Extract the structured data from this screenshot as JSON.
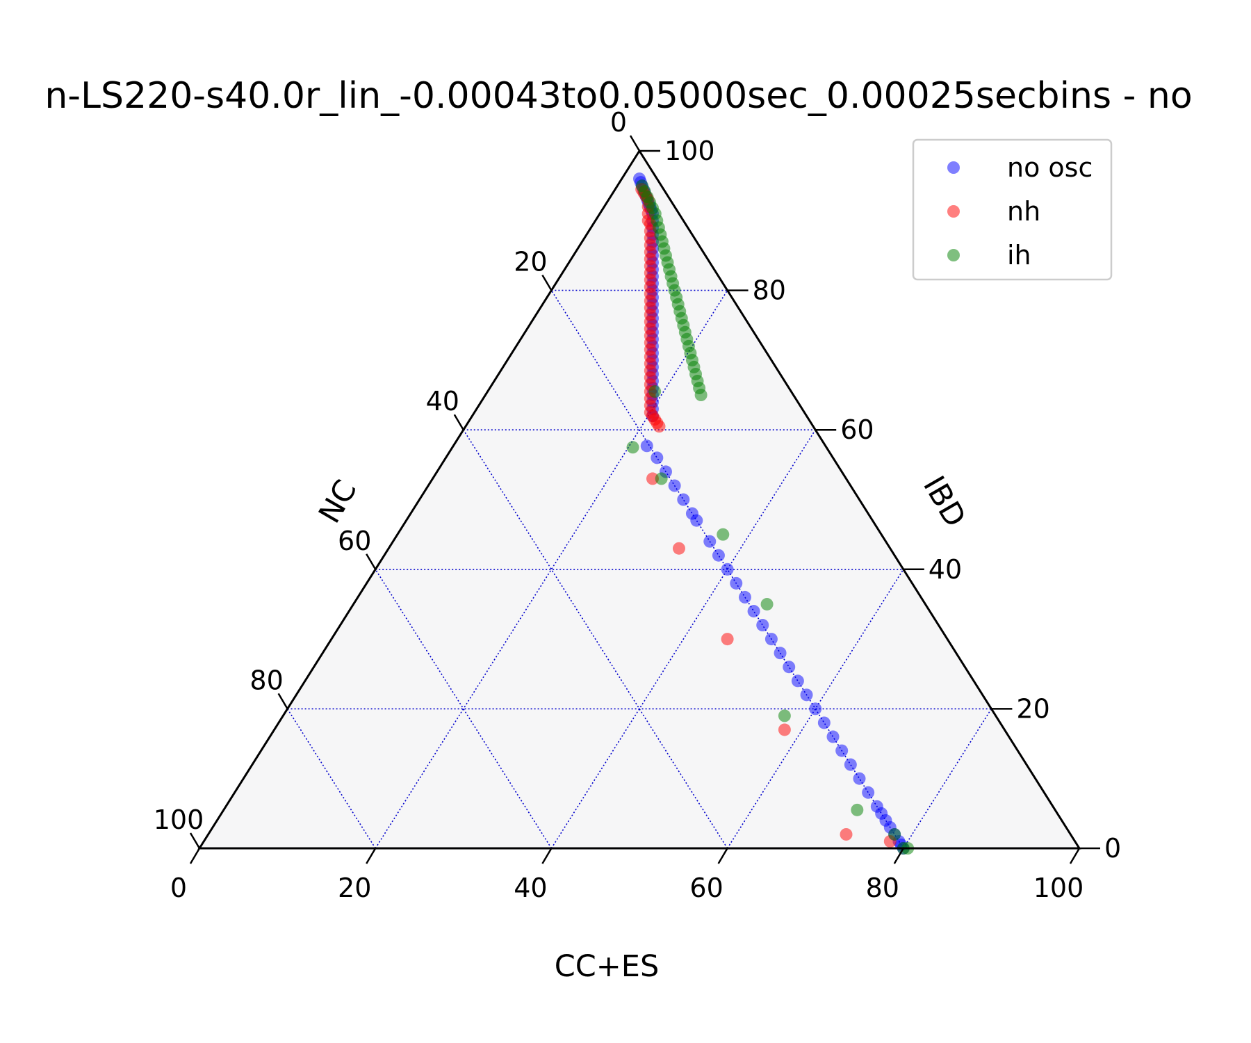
{
  "chart_data": {
    "type": "scatter",
    "subtype": "ternary",
    "title": "n-LS220-s40.0r_lin_-0.00043to0.05000sec_0.00025secbins - no",
    "axes": {
      "bottom": {
        "label": "CC+ES",
        "ticks": [
          "0",
          "20",
          "40",
          "60",
          "80",
          "100"
        ],
        "range": [
          0,
          100
        ]
      },
      "right": {
        "label": "IBD",
        "ticks": [
          "0",
          "20",
          "40",
          "60",
          "80",
          "100"
        ],
        "range": [
          0,
          100
        ]
      },
      "left": {
        "label": "NC",
        "ticks": [
          "0",
          "20",
          "40",
          "60",
          "80",
          "100"
        ],
        "range": [
          0,
          100
        ]
      }
    },
    "grid": true,
    "grid_step": 20,
    "legend_position": "top-right",
    "series": [
      {
        "name": "no osc",
        "color": "#0000ff",
        "points": [
          [
            2.0,
            96.0
          ],
          [
            2.4,
            95.5
          ],
          [
            2.8,
            95.0
          ],
          [
            3.2,
            94.5
          ],
          [
            3.6,
            94.0
          ],
          [
            4.0,
            93.5
          ],
          [
            4.4,
            93.0
          ],
          [
            4.8,
            92.5
          ],
          [
            5.2,
            92.0
          ],
          [
            5.6,
            91.5
          ],
          [
            6.0,
            91.0
          ],
          [
            6.5,
            90.0
          ],
          [
            7.0,
            89.0
          ],
          [
            7.5,
            88.0
          ],
          [
            8.0,
            87.0
          ],
          [
            8.5,
            86.0
          ],
          [
            9.0,
            85.0
          ],
          [
            9.5,
            84.0
          ],
          [
            10.0,
            83.0
          ],
          [
            10.5,
            82.0
          ],
          [
            11.0,
            81.0
          ],
          [
            11.5,
            80.0
          ],
          [
            12.0,
            79.0
          ],
          [
            12.5,
            78.0
          ],
          [
            13.0,
            77.0
          ],
          [
            13.5,
            76.0
          ],
          [
            14.0,
            75.0
          ],
          [
            14.5,
            74.0
          ],
          [
            15.0,
            73.0
          ],
          [
            15.5,
            72.0
          ],
          [
            16.0,
            71.0
          ],
          [
            16.5,
            70.0
          ],
          [
            17.0,
            69.0
          ],
          [
            17.5,
            68.0
          ],
          [
            18.0,
            67.0
          ],
          [
            18.5,
            66.0
          ],
          [
            19.0,
            65.0
          ],
          [
            19.5,
            64.0
          ],
          [
            20.0,
            63.0
          ],
          [
            20.5,
            62.0
          ],
          [
            22.0,
            57.7
          ],
          [
            24.0,
            56.0
          ],
          [
            26.0,
            54.0
          ],
          [
            28.0,
            52.0
          ],
          [
            30.0,
            50.0
          ],
          [
            32.0,
            48.0
          ],
          [
            33.0,
            47.0
          ],
          [
            36.0,
            44.0
          ],
          [
            38.0,
            42.0
          ],
          [
            40.0,
            40.0
          ],
          [
            42.0,
            38.0
          ],
          [
            44.0,
            36.0
          ],
          [
            46.0,
            34.0
          ],
          [
            48.0,
            32.0
          ],
          [
            50.0,
            30.0
          ],
          [
            52.0,
            28.0
          ],
          [
            54.0,
            26.0
          ],
          [
            56.0,
            24.0
          ],
          [
            58.0,
            22.0
          ],
          [
            60.0,
            20.0
          ],
          [
            62.0,
            18.0
          ],
          [
            64.0,
            16.0
          ],
          [
            66.0,
            14.0
          ],
          [
            68.0,
            12.0
          ],
          [
            70.0,
            10.0
          ],
          [
            72.0,
            8.0
          ],
          [
            74.0,
            6.0
          ],
          [
            75.0,
            5.0
          ],
          [
            76.0,
            4.0
          ],
          [
            77.0,
            3.0
          ],
          [
            78.0,
            2.0
          ],
          [
            79.0,
            1.0
          ],
          [
            79.5,
            0.5
          ],
          [
            80.0,
            0.0
          ]
        ]
      },
      {
        "name": "nh",
        "color": "#ff0000",
        "points": [
          [
            3.0,
            94.5
          ],
          [
            3.5,
            94.0
          ],
          [
            4.0,
            93.5
          ],
          [
            4.5,
            93.0
          ],
          [
            5.0,
            92.0
          ],
          [
            5.5,
            91.0
          ],
          [
            6.0,
            90.0
          ],
          [
            6.5,
            89.5
          ],
          [
            7.0,
            88.5
          ],
          [
            7.5,
            87.5
          ],
          [
            8.0,
            86.5
          ],
          [
            8.5,
            85.5
          ],
          [
            9.0,
            84.5
          ],
          [
            9.5,
            83.5
          ],
          [
            10.0,
            82.5
          ],
          [
            10.5,
            81.5
          ],
          [
            11.0,
            80.5
          ],
          [
            11.5,
            79.5
          ],
          [
            12.0,
            78.5
          ],
          [
            12.5,
            77.5
          ],
          [
            13.0,
            76.5
          ],
          [
            13.5,
            75.5
          ],
          [
            14.0,
            74.5
          ],
          [
            14.5,
            73.5
          ],
          [
            15.0,
            72.5
          ],
          [
            15.5,
            71.5
          ],
          [
            16.0,
            70.5
          ],
          [
            16.5,
            69.5
          ],
          [
            17.0,
            68.5
          ],
          [
            17.5,
            67.5
          ],
          [
            18.0,
            66.5
          ],
          [
            18.5,
            65.5
          ],
          [
            19.0,
            64.5
          ],
          [
            19.5,
            63.5
          ],
          [
            20.0,
            62.5
          ],
          [
            20.5,
            62.0
          ],
          [
            21.0,
            61.5
          ],
          [
            21.5,
            61.0
          ],
          [
            22.0,
            60.5
          ],
          [
            25.0,
            53.0
          ],
          [
            33.0,
            43.0
          ],
          [
            45.0,
            30.0
          ],
          [
            58.0,
            17.0
          ],
          [
            72.5,
            2.0
          ],
          [
            78.0,
            1.0
          ]
        ]
      },
      {
        "name": "ih",
        "color": "#008000",
        "points": [
          [
            2.8,
            95.0
          ],
          [
            3.5,
            94.2
          ],
          [
            4.2,
            93.4
          ],
          [
            4.9,
            92.6
          ],
          [
            5.6,
            91.8
          ],
          [
            6.3,
            91.0
          ],
          [
            7.0,
            90.0
          ],
          [
            7.7,
            89.0
          ],
          [
            8.4,
            88.0
          ],
          [
            9.1,
            87.0
          ],
          [
            9.8,
            86.0
          ],
          [
            10.5,
            85.0
          ],
          [
            11.2,
            84.0
          ],
          [
            11.9,
            83.0
          ],
          [
            12.6,
            82.0
          ],
          [
            13.3,
            81.0
          ],
          [
            14.0,
            80.0
          ],
          [
            14.7,
            79.0
          ],
          [
            15.4,
            78.0
          ],
          [
            16.1,
            77.0
          ],
          [
            16.8,
            76.0
          ],
          [
            17.5,
            75.0
          ],
          [
            18.2,
            74.0
          ],
          [
            18.9,
            73.0
          ],
          [
            19.6,
            72.0
          ],
          [
            20.3,
            71.0
          ],
          [
            21.0,
            70.0
          ],
          [
            21.7,
            69.0
          ],
          [
            22.4,
            68.0
          ],
          [
            23.1,
            67.0
          ],
          [
            23.8,
            66.0
          ],
          [
            24.5,
            65.0
          ],
          [
            19.0,
            65.5
          ],
          [
            20.5,
            57.5
          ],
          [
            26.0,
            53.0
          ],
          [
            37.0,
            45.0
          ],
          [
            47.0,
            35.0
          ],
          [
            57.0,
            19.0
          ],
          [
            72.0,
            5.5
          ],
          [
            78.0,
            2.0
          ],
          [
            80.0,
            0.0
          ],
          [
            80.5,
            0.0
          ]
        ]
      }
    ]
  }
}
